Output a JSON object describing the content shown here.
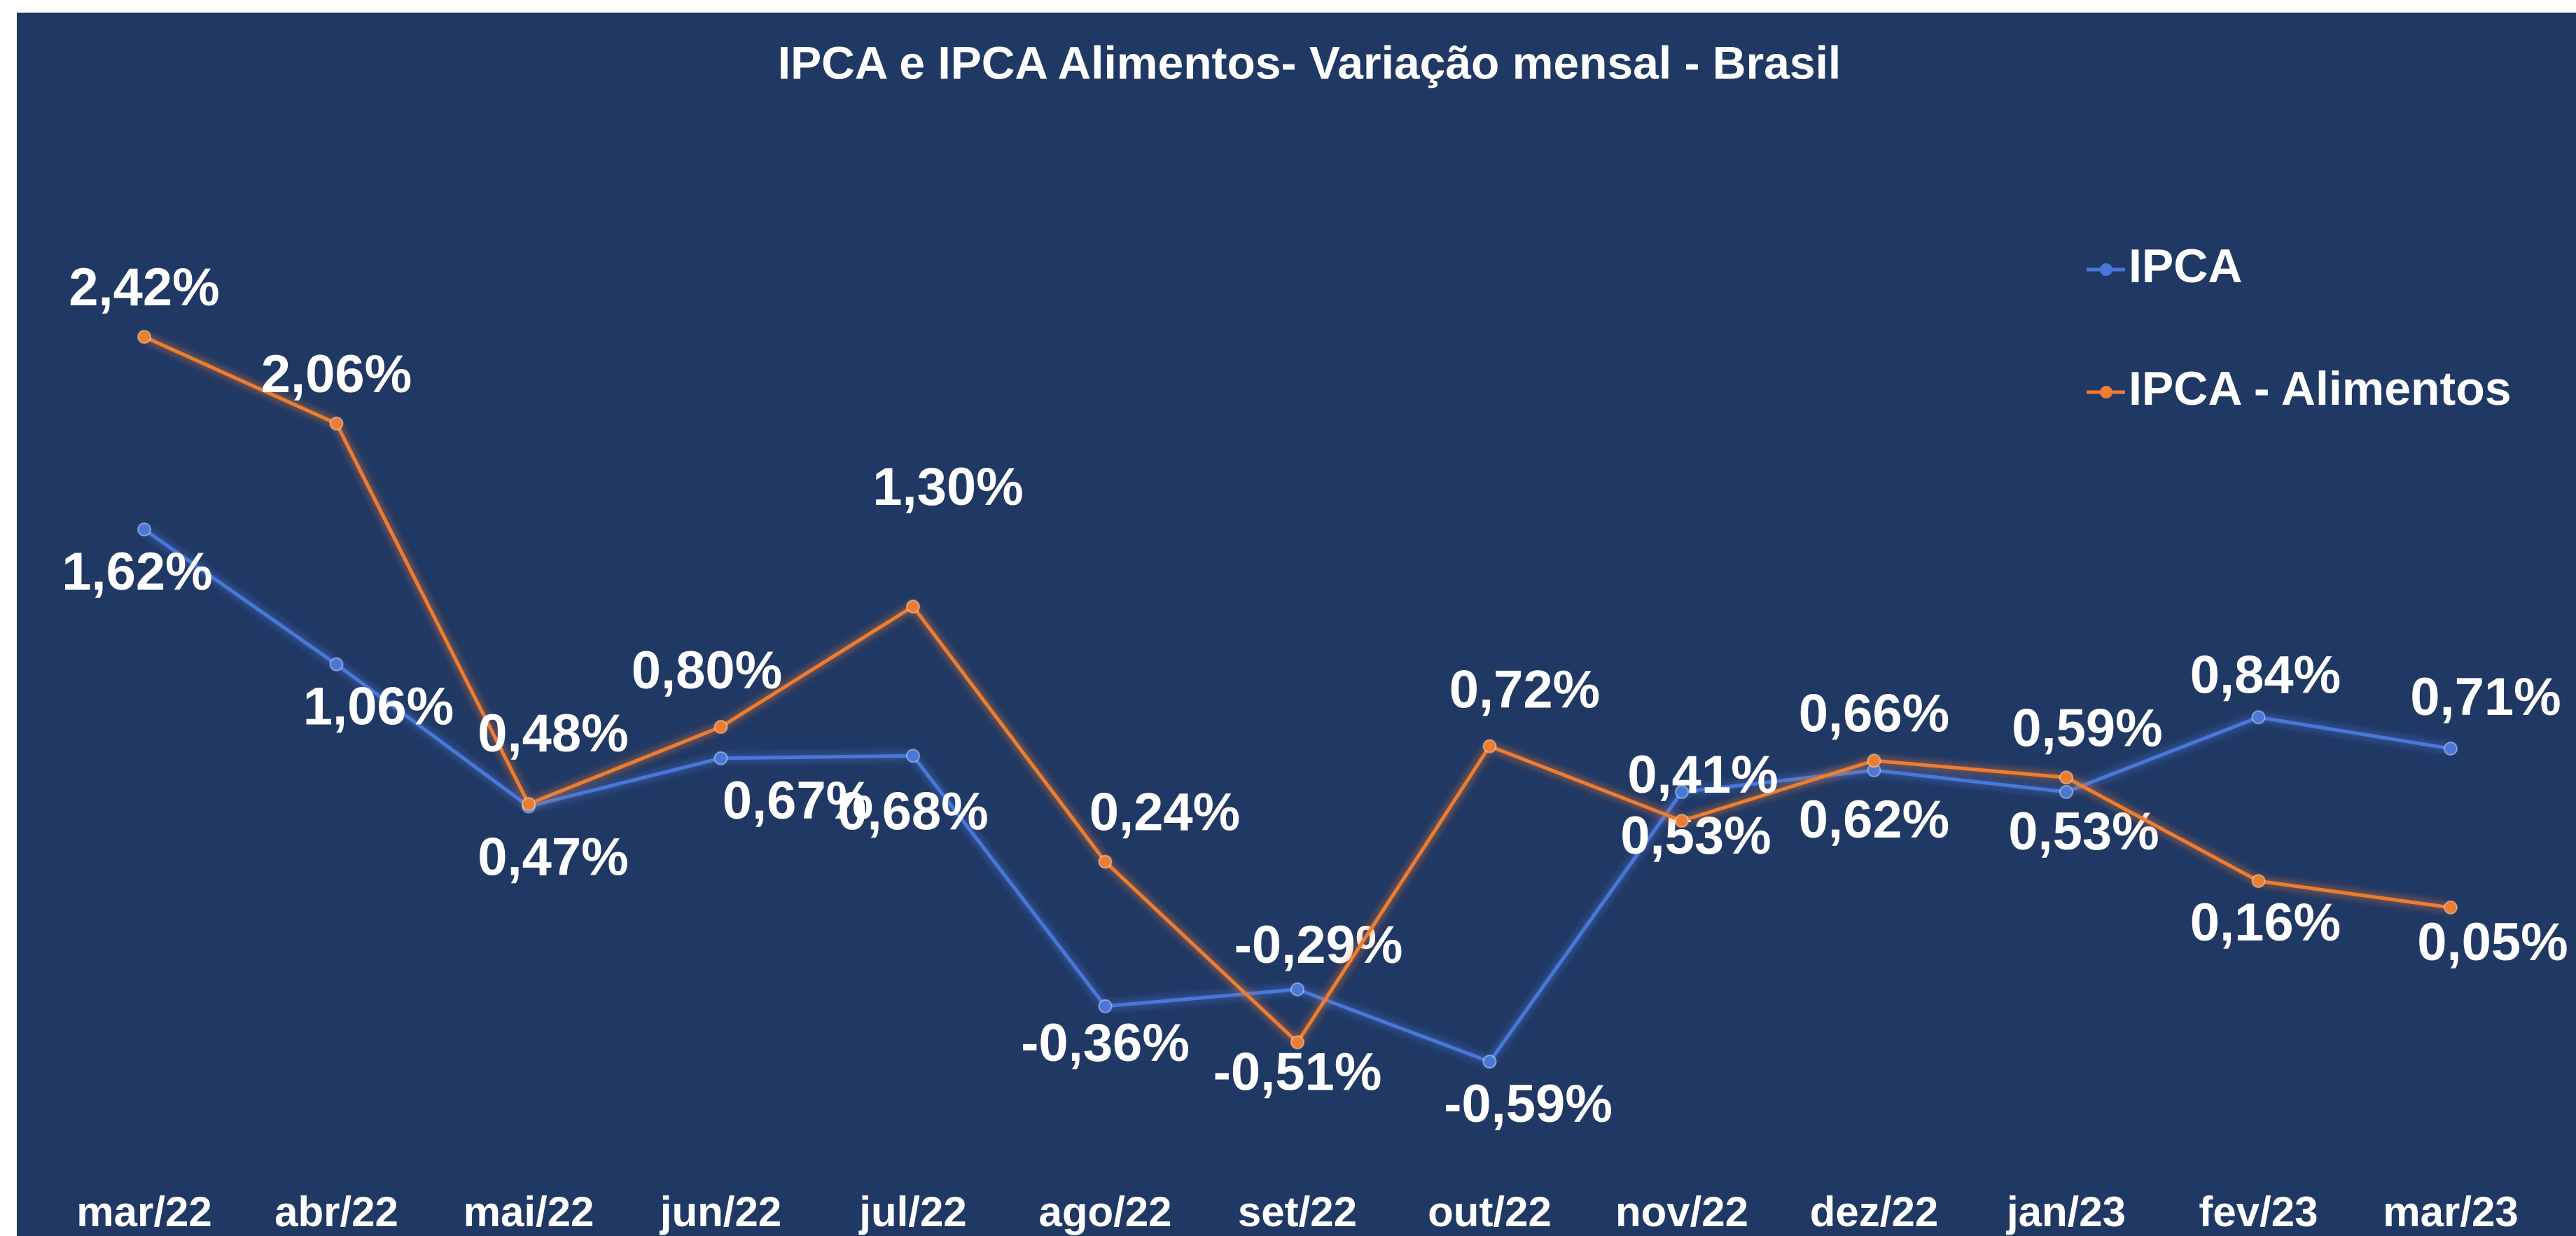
{
  "chart_data": {
    "type": "line",
    "title": "IPCA  e IPCA Alimentos- Variação mensal - Brasil",
    "categories": [
      "mar/22",
      "abr/22",
      "mai/22",
      "jun/22",
      "jul/22",
      "ago/22",
      "set/22",
      "out/22",
      "nov/22",
      "dez/22",
      "jan/23",
      "fev/23",
      "mar/23"
    ],
    "legend": "top-right",
    "series": [
      {
        "name": "IPCA",
        "color": "#4a78d8",
        "values": [
          1.62,
          1.06,
          0.47,
          0.67,
          0.68,
          -0.36,
          -0.29,
          -0.59,
          0.53,
          0.62,
          0.53,
          0.84,
          0.71
        ],
        "value_labels": [
          "1,62%",
          "1,06%",
          "0,47%",
          "0,67%",
          "0,68%",
          "-0,36%",
          "-0,29%",
          "-0,59%",
          "0,53%",
          "0,62%",
          "0,53%",
          "0,84%",
          "0,71%"
        ]
      },
      {
        "name": "IPCA - Alimentos",
        "color": "#ed7d31",
        "values": [
          2.42,
          2.06,
          0.48,
          0.8,
          1.3,
          0.24,
          -0.51,
          0.72,
          0.41,
          0.66,
          0.59,
          0.16,
          0.05
        ],
        "value_labels": [
          "2,42%",
          "2,06%",
          "0,48%",
          "0,80%",
          "1,30%",
          "0,24%",
          "-0,51%",
          "0,72%",
          "0,41%",
          "0,66%",
          "0,59%",
          "0,16%",
          "0,05%"
        ]
      }
    ]
  }
}
